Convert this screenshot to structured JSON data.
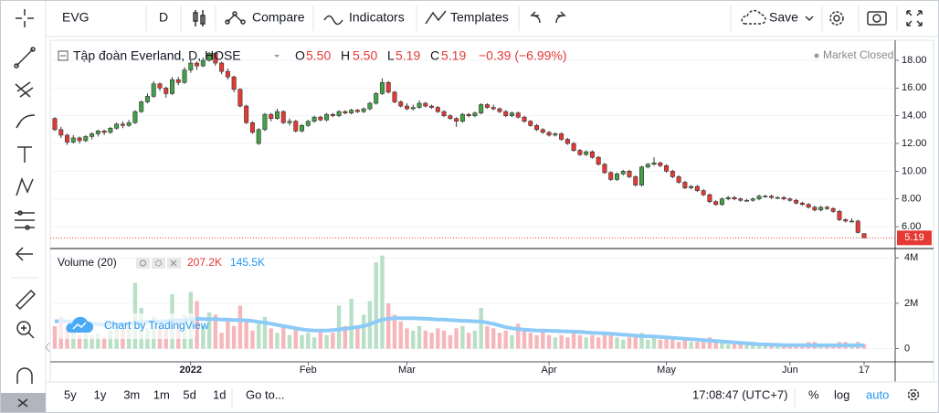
{
  "toolbar": {
    "symbol": "EVG",
    "interval": "D",
    "compare": "Compare",
    "indicators": "Indicators",
    "templates": "Templates",
    "save": "Save"
  },
  "legend": {
    "name": "Tập đoàn Everland, D, HOSE",
    "o": "O",
    "o_value": "5.50",
    "h": "H",
    "h_value": "5.50",
    "l": "L",
    "l_value": "5.19",
    "c": "C",
    "c_value": "5.19",
    "change": "−0.39 (−6.99%)",
    "market_status": "Market Closed"
  },
  "volume_legend": {
    "name": "Volume (20)",
    "volume": "207.2K",
    "ma": "145.5K"
  },
  "watermark": "Chart by TradingView",
  "bottom_bar": {
    "ranges": [
      "5y",
      "1y",
      "3m",
      "1m",
      "5d",
      "1d"
    ],
    "goto": "Go to...",
    "time": "17:08:47 (UTC+7)",
    "percent": "%",
    "log": "log",
    "auto": "auto"
  },
  "chart_data": {
    "type": "candlestick",
    "categories": [
      null,
      null,
      null,
      null,
      null,
      null,
      null,
      null,
      null,
      null,
      null,
      null,
      null,
      null,
      null,
      null,
      null,
      null,
      null,
      null,
      null,
      null,
      "2022",
      null,
      null,
      null,
      null,
      null,
      null,
      null,
      null,
      null,
      null,
      null,
      null,
      null,
      null,
      null,
      null,
      null,
      null,
      "Feb",
      null,
      null,
      null,
      null,
      null,
      null,
      null,
      null,
      null,
      null,
      null,
      null,
      null,
      null,
      null,
      "Mar",
      null,
      null,
      null,
      null,
      null,
      null,
      null,
      null,
      null,
      null,
      null,
      null,
      null,
      null,
      null,
      null,
      null,
      null,
      null,
      null,
      null,
      null,
      "Apr",
      null,
      null,
      null,
      null,
      null,
      null,
      null,
      null,
      null,
      null,
      null,
      null,
      null,
      null,
      null,
      null,
      null,
      null,
      "May",
      null,
      null,
      null,
      null,
      null,
      null,
      null,
      null,
      null,
      null,
      null,
      null,
      null,
      null,
      null,
      null,
      null,
      null,
      null,
      "Jun",
      null,
      null,
      null,
      null,
      null,
      null,
      null,
      null,
      null,
      null,
      null,
      "17"
    ],
    "open": [
      13.8,
      13.0,
      12.6,
      12.1,
      12.4,
      12.2,
      12.5,
      12.7,
      12.9,
      12.8,
      13.1,
      13.4,
      13.3,
      13.5,
      14.3,
      15.0,
      15.4,
      16.3,
      16.0,
      15.6,
      16.6,
      16.4,
      17.3,
      17.8,
      17.6,
      18.0,
      18.5,
      17.8,
      17.2,
      16.8,
      15.9,
      14.7,
      13.5,
      12.0,
      13.0,
      14.1,
      13.8,
      14.3,
      13.5,
      13.6,
      12.9,
      13.3,
      13.6,
      13.9,
      13.7,
      14.1,
      14.0,
      14.3,
      14.2,
      14.4,
      14.3,
      14.5,
      14.9,
      15.6,
      16.4,
      15.7,
      15.0,
      14.7,
      14.5,
      14.6,
      14.9,
      14.7,
      14.6,
      14.3,
      14.0,
      13.8,
      13.6,
      14.1,
      14.0,
      14.2,
      14.8,
      14.6,
      14.5,
      14.3,
      14.0,
      14.2,
      13.9,
      13.6,
      13.3,
      13.0,
      12.8,
      12.6,
      12.7,
      12.3,
      12.0,
      11.5,
      11.2,
      11.4,
      11.0,
      10.5,
      9.9,
      9.4,
      9.8,
      10.0,
      9.6,
      9.0,
      10.3,
      10.5,
      10.6,
      10.4,
      10.0,
      9.6,
      9.2,
      8.8,
      8.9,
      8.6,
      8.3,
      7.8,
      7.6,
      8.0,
      8.1,
      8.0,
      7.9,
      7.9,
      8.0,
      8.2,
      8.2,
      8.1,
      8.1,
      8.0,
      7.9,
      7.7,
      7.6,
      7.4,
      7.2,
      7.4,
      7.3,
      7.1,
      6.5,
      6.4,
      6.4,
      5.5
    ],
    "high": [
      13.9,
      13.2,
      12.7,
      12.6,
      12.5,
      12.6,
      12.8,
      13.0,
      13.0,
      13.2,
      13.5,
      13.6,
      13.7,
      14.4,
      15.1,
      15.6,
      16.5,
      16.4,
      16.1,
      16.8,
      16.8,
      17.5,
      18.0,
      17.9,
      18.2,
      18.6,
      18.6,
      17.9,
      17.4,
      16.9,
      16.0,
      14.8,
      13.6,
      13.1,
      14.2,
      14.2,
      14.5,
      14.4,
      13.8,
      13.7,
      13.4,
      13.7,
      14.0,
      14.0,
      14.2,
      14.2,
      14.4,
      14.4,
      14.5,
      14.5,
      14.6,
      15.0,
      15.7,
      16.7,
      16.5,
      15.8,
      15.1,
      14.9,
      14.8,
      15.1,
      15.0,
      14.8,
      14.7,
      14.4,
      14.1,
      13.9,
      14.2,
      14.2,
      14.3,
      14.9,
      14.9,
      14.8,
      14.6,
      14.4,
      14.3,
      14.3,
      14.0,
      13.7,
      13.4,
      13.1,
      12.9,
      12.8,
      12.8,
      12.4,
      12.1,
      11.6,
      11.5,
      11.5,
      11.1,
      10.6,
      10.0,
      9.9,
      10.1,
      10.1,
      9.7,
      10.4,
      10.6,
      11.0,
      10.7,
      10.5,
      10.1,
      9.7,
      9.3,
      9.0,
      9.0,
      8.7,
      8.4,
      7.9,
      8.1,
      8.2,
      8.2,
      8.1,
      8.0,
      8.1,
      8.3,
      8.3,
      8.3,
      8.2,
      8.2,
      8.1,
      8.0,
      7.8,
      7.7,
      7.5,
      7.5,
      7.5,
      7.4,
      7.2,
      6.6,
      6.6,
      6.5,
      5.5
    ],
    "low": [
      12.9,
      12.4,
      11.9,
      12.0,
      12.0,
      12.1,
      12.3,
      12.5,
      12.6,
      12.7,
      13.0,
      13.1,
      13.2,
      13.4,
      14.2,
      14.9,
      15.3,
      15.8,
      15.3,
      15.5,
      16.2,
      16.3,
      17.1,
      17.3,
      17.5,
      17.9,
      17.6,
      17.0,
      16.6,
      15.7,
      14.6,
      13.4,
      12.7,
      11.9,
      12.9,
      13.6,
      13.7,
      13.4,
      13.3,
      12.8,
      12.8,
      13.2,
      13.5,
      13.6,
      13.6,
      13.9,
      13.9,
      14.1,
      14.1,
      14.2,
      14.2,
      14.4,
      14.8,
      15.5,
      15.6,
      14.9,
      14.6,
      14.4,
      14.4,
      14.5,
      14.6,
      14.5,
      14.2,
      13.9,
      13.7,
      13.2,
      13.5,
      13.9,
      13.9,
      14.1,
      14.5,
      14.4,
      14.2,
      13.9,
      13.9,
      13.8,
      13.5,
      13.2,
      12.9,
      12.7,
      12.5,
      12.5,
      12.2,
      11.9,
      11.4,
      11.1,
      11.1,
      10.9,
      10.4,
      9.8,
      9.3,
      9.3,
      9.7,
      9.5,
      8.9,
      8.9,
      10.2,
      10.4,
      10.3,
      9.9,
      9.5,
      9.1,
      8.7,
      8.7,
      8.5,
      8.2,
      7.7,
      7.5,
      7.5,
      7.9,
      7.9,
      7.8,
      7.8,
      7.8,
      7.9,
      8.1,
      8.0,
      8.0,
      7.9,
      7.8,
      7.6,
      7.5,
      7.3,
      7.1,
      7.1,
      7.2,
      7.0,
      6.4,
      6.3,
      6.3,
      5.5,
      5.19
    ],
    "close": [
      13.0,
      12.6,
      12.1,
      12.4,
      12.2,
      12.5,
      12.7,
      12.9,
      12.8,
      13.1,
      13.4,
      13.3,
      13.5,
      14.3,
      15.0,
      15.4,
      16.3,
      16.0,
      15.6,
      16.6,
      16.4,
      17.3,
      17.8,
      17.6,
      18.0,
      18.5,
      17.8,
      17.2,
      16.8,
      15.9,
      14.7,
      13.5,
      12.8,
      13.0,
      14.1,
      13.8,
      14.3,
      13.5,
      13.6,
      12.9,
      13.3,
      13.6,
      13.9,
      13.7,
      14.1,
      14.0,
      14.3,
      14.2,
      14.4,
      14.3,
      14.5,
      14.9,
      15.6,
      16.4,
      15.7,
      15.0,
      14.7,
      14.5,
      14.6,
      14.9,
      14.7,
      14.6,
      14.3,
      14.0,
      13.8,
      13.6,
      14.1,
      14.0,
      14.2,
      14.8,
      14.6,
      14.5,
      14.3,
      14.0,
      14.2,
      13.9,
      13.6,
      13.3,
      13.0,
      12.8,
      12.6,
      12.7,
      12.3,
      12.0,
      11.5,
      11.2,
      11.4,
      11.0,
      10.5,
      9.9,
      9.4,
      9.8,
      10.0,
      9.6,
      9.0,
      10.3,
      10.5,
      10.6,
      10.4,
      10.0,
      9.6,
      9.2,
      8.8,
      8.9,
      8.6,
      8.3,
      7.8,
      7.6,
      8.0,
      8.1,
      8.0,
      7.9,
      7.9,
      8.0,
      8.2,
      8.2,
      8.1,
      8.1,
      8.0,
      7.9,
      7.7,
      7.6,
      7.4,
      7.2,
      7.4,
      7.3,
      7.1,
      6.5,
      6.4,
      6.4,
      5.58,
      5.19
    ],
    "volume": [
      1000000,
      1400000,
      900000,
      800000,
      600000,
      700000,
      600000,
      700000,
      500000,
      800000,
      1000000,
      900000,
      1200000,
      2900000,
      1800000,
      900000,
      1400000,
      1000000,
      900000,
      2400000,
      1200000,
      1500000,
      2500000,
      2100000,
      1000000,
      1600000,
      1500000,
      700000,
      1300000,
      1000000,
      1900000,
      1200000,
      800000,
      1100000,
      1400000,
      900000,
      700000,
      1000000,
      600000,
      900000,
      600000,
      700000,
      500000,
      800000,
      600000,
      700000,
      1900000,
      1000000,
      2200000,
      1000000,
      1500000,
      2100000,
      3800000,
      4100000,
      2000000,
      1500000,
      1200000,
      900000,
      800000,
      1000000,
      800000,
      700000,
      900000,
      800000,
      600000,
      900000,
      1000000,
      700000,
      800000,
      1800000,
      1000000,
      900000,
      700000,
      800000,
      600000,
      1100000,
      800000,
      700000,
      600000,
      800000,
      600000,
      500000,
      600000,
      500000,
      700000,
      600000,
      500000,
      600000,
      500000,
      600000,
      700000,
      500000,
      400000,
      500000,
      600000,
      700000,
      400000,
      500000,
      400000,
      500000,
      400000,
      300000,
      500000,
      300000,
      300000,
      400000,
      500000,
      300000,
      300000,
      200000,
      200000,
      200000,
      200000,
      300000,
      200000,
      200000,
      200000,
      200000,
      200000,
      200000,
      200000,
      200000,
      300000,
      300000,
      200000,
      200000,
      200000,
      300000,
      300000,
      200000,
      300000,
      207200
    ],
    "volume_ma": [
      1200000,
      1220000,
      1200000,
      1180000,
      1150000,
      1120000,
      1100000,
      1080000,
      1060000,
      1060000,
      1080000,
      1080000,
      1100000,
      1150000,
      1180000,
      1180000,
      1200000,
      1200000,
      1200000,
      1250000,
      1250000,
      1260000,
      1300000,
      1320000,
      1300000,
      1300000,
      1300000,
      1280000,
      1280000,
      1260000,
      1260000,
      1250000,
      1220000,
      1180000,
      1150000,
      1100000,
      1050000,
      1000000,
      950000,
      900000,
      850000,
      820000,
      800000,
      800000,
      800000,
      820000,
      850000,
      880000,
      920000,
      950000,
      1000000,
      1080000,
      1180000,
      1280000,
      1320000,
      1340000,
      1340000,
      1340000,
      1340000,
      1330000,
      1320000,
      1300000,
      1280000,
      1280000,
      1260000,
      1250000,
      1230000,
      1220000,
      1200000,
      1200000,
      1150000,
      1100000,
      1020000,
      950000,
      900000,
      860000,
      840000,
      820000,
      800000,
      800000,
      790000,
      780000,
      770000,
      760000,
      750000,
      740000,
      720000,
      700000,
      690000,
      680000,
      660000,
      640000,
      620000,
      600000,
      580000,
      560000,
      550000,
      540000,
      520000,
      500000,
      480000,
      460000,
      440000,
      420000,
      400000,
      380000,
      360000,
      340000,
      320000,
      300000,
      280000,
      260000,
      240000,
      220000,
      200000,
      190000,
      180000,
      170000,
      160000,
      160000,
      160000,
      160000,
      150000,
      150000,
      150000,
      150000,
      150000,
      150000,
      150000,
      150000,
      150000,
      145500
    ],
    "up_color": "#43a047",
    "down_color": "#e53935",
    "volume_up_color": "#b9dfc6",
    "volume_down_color": "#f6b7bb",
    "ma_color": "#8ccaf7",
    "ylim": [
      4.42,
      19.45
    ],
    "yticks": [
      {
        "value": 6,
        "label": "6.00"
      },
      {
        "value": 8,
        "label": "8.00"
      },
      {
        "value": 10,
        "label": "10.00"
      },
      {
        "value": 12,
        "label": "12.00"
      },
      {
        "value": 14,
        "label": "14.00"
      },
      {
        "value": 16,
        "label": "16.00"
      },
      {
        "value": 18,
        "label": "18.00"
      }
    ],
    "last_price": {
      "value": 5.19,
      "label": "5.19"
    },
    "volume_ylim": [
      -577000,
      4371000
    ],
    "volume_ticks": [
      {
        "value": 0,
        "label": "0"
      },
      {
        "value": 2000000,
        "label": "2M"
      },
      {
        "value": 4000000,
        "label": "4M"
      }
    ],
    "grid": true
  }
}
